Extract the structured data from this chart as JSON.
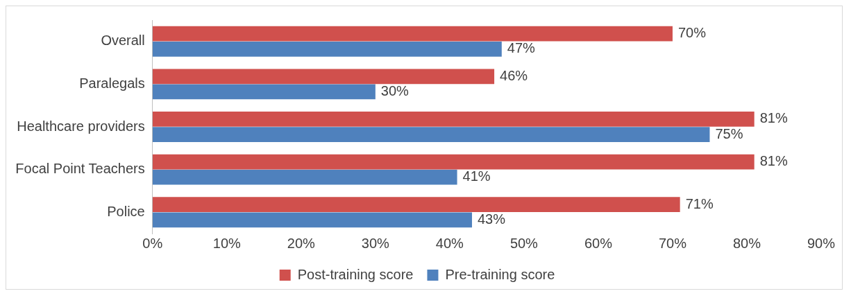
{
  "chart_data": {
    "type": "bar",
    "orientation": "horizontal",
    "categories": [
      "Overall",
      "Paralegals",
      "Healthcare providers",
      "Focal Point Teachers",
      "Police"
    ],
    "series": [
      {
        "name": "Post-training score",
        "color": "#d0504d",
        "values": [
          70,
          46,
          81,
          81,
          71
        ],
        "value_labels": [
          "70%",
          "46%",
          "81%",
          "81%",
          "71%"
        ]
      },
      {
        "name": "Pre-training score",
        "color": "#4f81bd",
        "values": [
          47,
          30,
          75,
          41,
          43
        ],
        "value_labels": [
          "47%",
          "30%",
          "75%",
          "41%",
          "43%"
        ]
      }
    ],
    "xlim": [
      0,
      90
    ],
    "xticks": [
      {
        "value": 0,
        "label": "0%"
      },
      {
        "value": 10,
        "label": "10%"
      },
      {
        "value": 20,
        "label": "20%"
      },
      {
        "value": 30,
        "label": "30%"
      },
      {
        "value": 40,
        "label": "40%"
      },
      {
        "value": 50,
        "label": "50%"
      },
      {
        "value": 60,
        "label": "60%"
      },
      {
        "value": 70,
        "label": "70%"
      },
      {
        "value": 80,
        "label": "80%"
      },
      {
        "value": 90,
        "label": "90%"
      }
    ],
    "grid": false,
    "legend": "bottom"
  }
}
